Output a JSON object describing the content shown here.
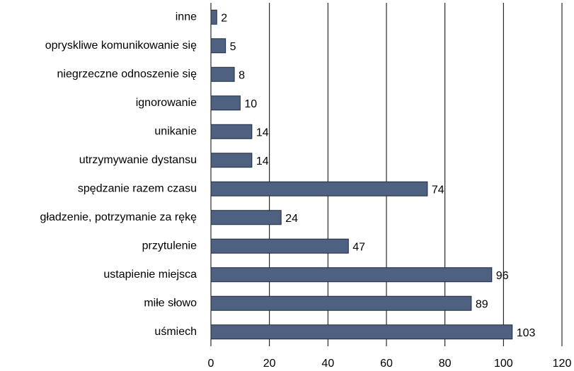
{
  "chart_data": {
    "type": "bar",
    "orientation": "horizontal",
    "categories": [
      "inne",
      "opryskliwe komunikowanie się",
      "niegrzeczne odnoszenie się",
      "ignorowanie",
      "unikanie",
      "utrzymywanie dystansu",
      "spędzanie razem czasu",
      "gładzenie, potrzymanie za rękę",
      "przytulenie",
      "ustapienie miejsca",
      "miłe słowo",
      "uśmiech"
    ],
    "values": [
      2,
      5,
      8,
      10,
      14,
      14,
      74,
      24,
      47,
      96,
      89,
      103
    ],
    "color": "#4f6181",
    "xlim": [
      0,
      120
    ],
    "xticks": [
      0,
      20,
      40,
      60,
      80,
      100,
      120
    ],
    "grid": true
  }
}
